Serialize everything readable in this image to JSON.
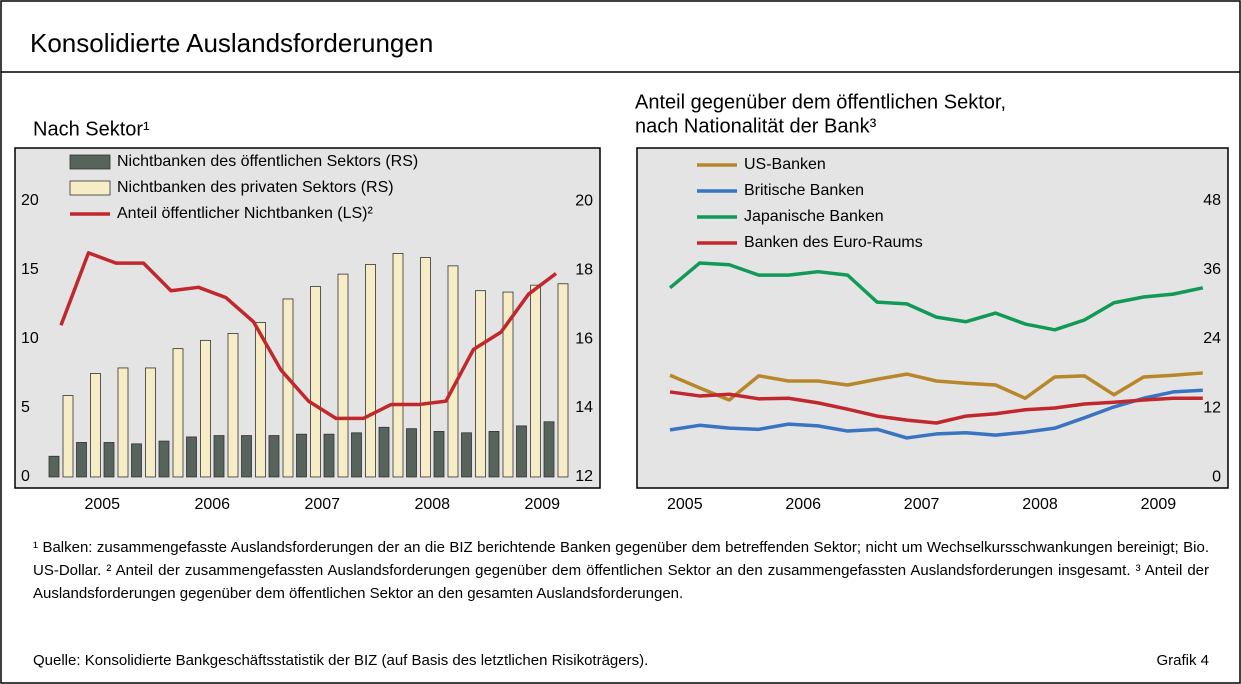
{
  "title": "Konsolidierte Auslandsforderungen",
  "chart_data": [
    {
      "type": "bar",
      "title": "Nach Sektor¹",
      "categories": [
        null,
        "2005",
        null,
        null,
        null,
        "2006",
        null,
        null,
        null,
        "2007",
        null,
        null,
        null,
        "2008",
        null,
        null,
        null,
        "2009",
        null
      ],
      "ylim": [
        -0.8,
        23.84
      ],
      "yticks": [
        0,
        5,
        10,
        15,
        20
      ],
      "y2lim": [
        11.68,
        21.54
      ],
      "y2ticks": [
        12,
        14,
        16,
        18,
        20
      ],
      "grid": false,
      "series": [
        {
          "name": "Nichtbanken des öffentlichen Sektors (RS)",
          "type": "bar",
          "color": "#56645b",
          "values": [
            1.5,
            2.5,
            2.5,
            2.4,
            2.6,
            2.9,
            3.0,
            3.0,
            3.0,
            3.1,
            3.1,
            3.2,
            3.6,
            3.5,
            3.3,
            3.2,
            3.3,
            3.7,
            4.0
          ]
        },
        {
          "name": "Nichtbanken des privaten Sektors (RS)",
          "type": "bar",
          "color": "#f6ecc6",
          "values": [
            5.9,
            7.5,
            7.9,
            7.9,
            9.3,
            9.9,
            10.4,
            11.2,
            12.9,
            13.8,
            14.7,
            15.4,
            16.2,
            15.9,
            15.3,
            13.5,
            13.4,
            13.9,
            14.0
          ]
        },
        {
          "name": "Anteil öffentlicher Nichtbanken (LS)²",
          "type": "line",
          "axis": "y2",
          "color": "#c0282d",
          "values": [
            16.4,
            18.5,
            18.2,
            18.2,
            17.4,
            17.5,
            17.2,
            16.5,
            15.1,
            14.2,
            13.7,
            13.7,
            14.1,
            14.1,
            14.2,
            15.7,
            16.2,
            17.3,
            17.9
          ]
        }
      ]
    },
    {
      "type": "line",
      "title": [
        "Anteil gegenüber dem öffentlichen Sektor,",
        "nach Nationalität der Bank³"
      ],
      "categories": [
        "2005",
        null,
        null,
        null,
        "2006",
        null,
        null,
        null,
        "2007",
        null,
        null,
        null,
        "2008",
        null,
        null,
        null,
        "2009",
        null,
        null
      ],
      "ylim": [
        -1.9,
        57.2
      ],
      "yticks": [
        0,
        12,
        24,
        36,
        48
      ],
      "yaxis_position": "right",
      "grid": false,
      "series": [
        {
          "name": "US-Banken",
          "color": "#b8862b",
          "values": [
            17.7,
            15.5,
            13.4,
            17.6,
            16.7,
            16.7,
            16.0,
            17.0,
            17.9,
            16.7,
            16.3,
            16.0,
            13.7,
            17.4,
            17.6,
            14.3,
            17.4,
            17.7,
            18.1
          ]
        },
        {
          "name": "Britische Banken",
          "color": "#3a74c0",
          "values": [
            8.2,
            9.0,
            8.5,
            8.3,
            9.2,
            8.9,
            8.0,
            8.3,
            6.8,
            7.5,
            7.7,
            7.3,
            7.8,
            8.5,
            10.3,
            12.2,
            13.7,
            14.8,
            15.1
          ]
        },
        {
          "name": "Japanische Banken",
          "color": "#119a57",
          "values": [
            32.9,
            37.2,
            36.9,
            35.1,
            35.1,
            35.7,
            35.1,
            30.4,
            30.1,
            27.8,
            27.0,
            28.5,
            26.6,
            25.6,
            27.3,
            30.3,
            31.3,
            31.8,
            32.9
          ]
        },
        {
          "name": "Banken des Euro-Raums",
          "color": "#c0282d",
          "values": [
            14.8,
            14.1,
            14.4,
            13.6,
            13.7,
            12.9,
            11.8,
            10.6,
            9.9,
            9.4,
            10.6,
            11.0,
            11.7,
            12.0,
            12.7,
            13.0,
            13.4,
            13.7,
            13.7
          ]
        }
      ]
    }
  ],
  "footnotes": [
    "¹ Balken: zusammengefasste Auslandsforderungen der an die BIZ berichtende Banken gegenüber dem betreffenden Sektor; nicht um Wechselkursschwankungen bereinigt; Bio. US-Dollar.",
    "² Anteil der zusammengefassten Auslandsforderungen gegenüber dem öffentlichen Sektor an den zusammengefassten Auslandsforderungen insgesamt.",
    "³ Anteil der Auslandsforderungen gegenüber dem öffentlichen Sektor an den gesamten Auslandsforderungen."
  ],
  "source": "Quelle: Konsolidierte Bankgeschäftsstatistik der BIZ (auf Basis des letztlichen Risikoträgers).",
  "figure_label": "Grafik 4"
}
